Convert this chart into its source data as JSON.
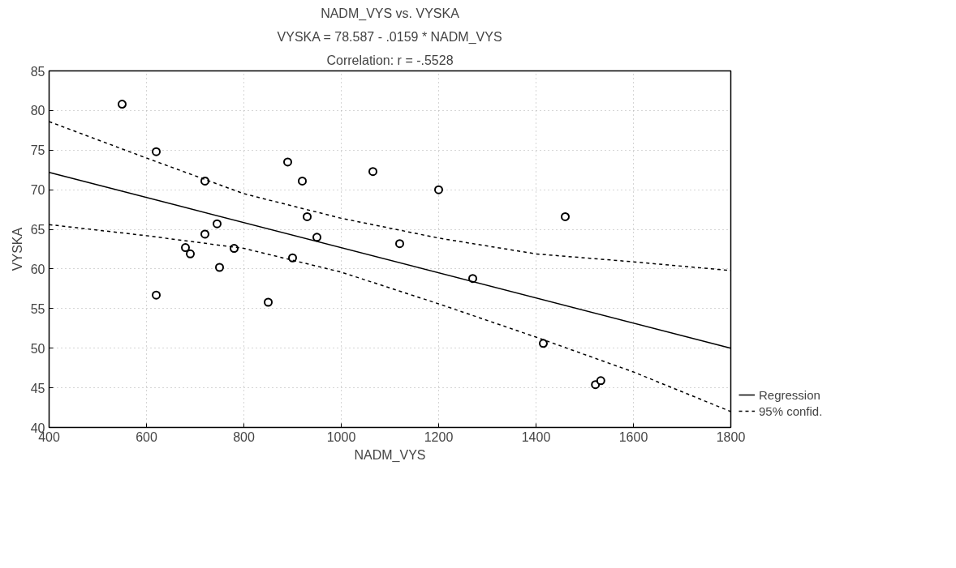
{
  "chart_data": {
    "type": "scatter",
    "title": "NADM_VYS vs. VYSKA",
    "subtitle": "VYSKA = 78.587 - .0159 * NADM_VYS",
    "annotations": [
      "Correlation: r = -.5528"
    ],
    "xlabel": "NADM_VYS",
    "ylabel": "VYSKA",
    "xlim": [
      400,
      1800
    ],
    "xticks": [
      400,
      600,
      800,
      1000,
      1200,
      1400,
      1600,
      1800
    ],
    "ylim": [
      40,
      85
    ],
    "yticks": [
      40,
      45,
      50,
      55,
      60,
      65,
      70,
      75,
      80,
      85
    ],
    "grid": true,
    "legend": "bottom right",
    "marker": "circle",
    "series": [
      {
        "type": "scatter",
        "color": "#000000",
        "x": [
          550,
          620,
          720,
          890,
          920,
          1065,
          930,
          950,
          1120,
          745,
          720,
          680,
          690,
          780,
          900,
          750,
          620,
          850,
          1200,
          1460,
          1270,
          1415,
          1522,
          1533
        ],
        "values": [
          80.8,
          74.8,
          71.1,
          73.5,
          71.1,
          72.3,
          66.6,
          64.0,
          63.2,
          65.7,
          64.4,
          62.7,
          61.9,
          62.6,
          61.4,
          60.2,
          56.7,
          55.8,
          70.0,
          66.6,
          58.8,
          50.6,
          45.4,
          45.9
        ]
      },
      {
        "type": "line",
        "name": "Regression",
        "color": "#000000",
        "marker": "none",
        "line_style": "solid",
        "x": [
          400,
          1800
        ],
        "values": [
          72.2,
          50.0
        ]
      },
      {
        "type": "line",
        "name": "95% confid.",
        "color": "#000000",
        "marker": "none",
        "line_style": "dashed",
        "x": [
          400,
          600,
          800,
          1000,
          1200,
          1400,
          1600,
          1800
        ],
        "values": [
          78.6,
          74.0,
          69.5,
          66.4,
          63.9,
          61.9,
          60.9,
          59.8
        ]
      },
      {
        "type": "line",
        "color": "#000000",
        "marker": "none",
        "line_style": "dashed",
        "x": [
          400,
          600,
          800,
          1000,
          1200,
          1400,
          1600,
          1800
        ],
        "values": [
          65.6,
          64.2,
          62.6,
          59.6,
          55.6,
          51.4,
          47.0,
          42.0
        ]
      }
    ]
  }
}
